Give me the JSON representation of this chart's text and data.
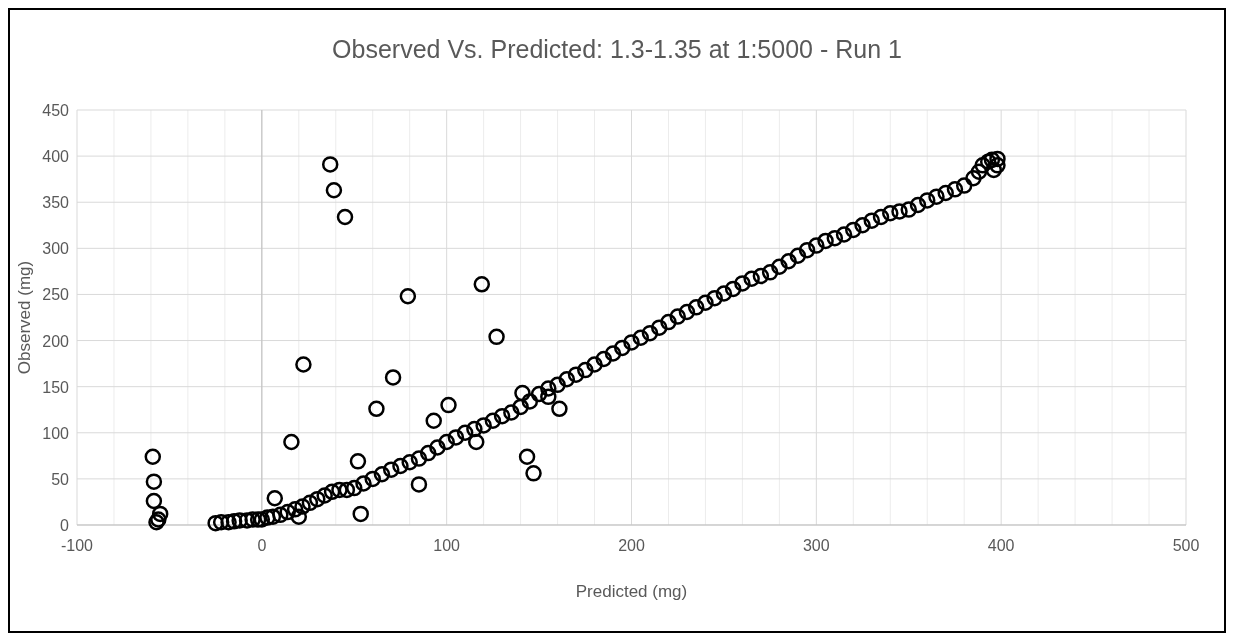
{
  "chart_data": {
    "type": "scatter",
    "title": "Observed Vs. Predicted: 1.3-1.35 at 1:5000 - Run 1",
    "xlabel": "Predicted (mg)",
    "ylabel": "Observed  (mg)",
    "marker": "circle",
    "grid": true,
    "xlim": [
      -100,
      500
    ],
    "xticks": [
      -100,
      {
        "value": -80,
        "label": null
      },
      {
        "value": -60,
        "label": null
      },
      {
        "value": -40,
        "label": null
      },
      {
        "value": -20,
        "label": null
      },
      0,
      {
        "value": 20,
        "label": null
      },
      {
        "value": 40,
        "label": null
      },
      {
        "value": 60,
        "label": null
      },
      {
        "value": 80,
        "label": null
      },
      100,
      {
        "value": 120,
        "label": null
      },
      {
        "value": 140,
        "label": null
      },
      {
        "value": 160,
        "label": null
      },
      {
        "value": 180,
        "label": null
      },
      200,
      {
        "value": 220,
        "label": null
      },
      {
        "value": 240,
        "label": null
      },
      {
        "value": 260,
        "label": null
      },
      {
        "value": 280,
        "label": null
      },
      300,
      {
        "value": 320,
        "label": null
      },
      {
        "value": 340,
        "label": null
      },
      {
        "value": 360,
        "label": null
      },
      {
        "value": 380,
        "label": null
      },
      400,
      {
        "value": 420,
        "label": null
      },
      {
        "value": 440,
        "label": null
      },
      {
        "value": 460,
        "label": null
      },
      {
        "value": 480,
        "label": null
      },
      500
    ],
    "ylim": [
      0,
      450
    ],
    "yticks": [
      0,
      50,
      100,
      150,
      200,
      250,
      300,
      350,
      400,
      450
    ],
    "series": [
      {
        "color": "#000000",
        "x": [
          -25,
          -22,
          -18,
          -15,
          -12,
          -8,
          -5,
          -2,
          0,
          3,
          6,
          10,
          14,
          18,
          22,
          26,
          30,
          34,
          38,
          42,
          46,
          50,
          55,
          60,
          65,
          70,
          75,
          80,
          85,
          90,
          95,
          100,
          105,
          110,
          115,
          120,
          125,
          130,
          135,
          140,
          145,
          150,
          155,
          160,
          165,
          170,
          175,
          180,
          185,
          190,
          195,
          200,
          205,
          210,
          215,
          220,
          225,
          230,
          235,
          240,
          245,
          250,
          255,
          260,
          265,
          270,
          275,
          280,
          285,
          290,
          295,
          300,
          305,
          310,
          315,
          320,
          325,
          330,
          335,
          340,
          345,
          350,
          355,
          360,
          365,
          370,
          375,
          380,
          385,
          388,
          390,
          393,
          395,
          398,
          398,
          396,
          37,
          39,
          45,
          79,
          119,
          127,
          22.5,
          71,
          62,
          101,
          93,
          16,
          116,
          52,
          143.5,
          147,
          85,
          7,
          53.5,
          161,
          141,
          155,
          20,
          -59,
          -58.4,
          -58.4,
          -55,
          -56,
          -57
        ],
        "values": [
          2,
          3,
          3,
          4,
          5,
          5,
          6,
          6,
          6,
          8,
          9,
          11,
          14,
          17,
          20,
          24,
          28,
          32,
          36,
          38,
          38,
          40,
          45,
          50,
          55,
          60,
          64,
          68,
          72,
          78,
          84,
          90,
          95,
          100,
          104,
          108,
          113,
          118,
          122,
          128,
          134,
          142,
          148,
          152,
          158,
          163,
          168,
          174,
          180,
          186,
          192,
          198,
          203,
          208,
          214,
          220,
          226,
          231,
          236,
          241,
          246,
          251,
          256,
          262,
          267,
          270,
          274,
          280,
          286,
          292,
          298,
          303,
          308,
          311,
          315,
          320,
          325,
          330,
          334,
          338,
          340,
          342,
          347,
          352,
          356,
          360,
          364,
          368,
          376,
          383,
          390,
          394,
          396,
          397,
          390,
          385,
          391,
          363,
          334,
          248,
          261,
          204,
          174,
          160,
          126,
          130,
          113,
          90,
          90,
          69,
          74,
          56,
          44,
          29,
          12,
          126,
          143,
          139,
          9,
          74,
          47,
          26,
          12,
          6,
          3
        ]
      }
    ]
  }
}
